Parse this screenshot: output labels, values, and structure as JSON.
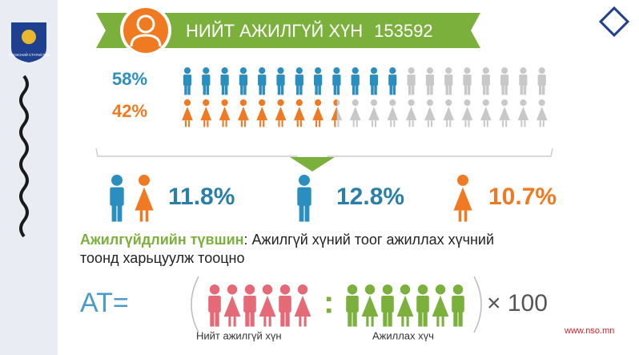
{
  "header": {
    "title": "НИЙТ АЖИЛГҮЙ ХҮН",
    "total": "153592"
  },
  "logo_text": "ҮНДЭСНИЙ СТАТИСТИК",
  "gender_split": [
    {
      "value": 58,
      "label": "58%"
    },
    {
      "value": 42,
      "label": "42%"
    }
  ],
  "rates": {
    "total": "11.8%",
    "male": "12.8%",
    "female": "10.7%"
  },
  "definition": {
    "term": "Ажилгүйдлийн түвшин",
    "separator": ":",
    "text_line1": " Ажилгүй хүний тоог ажиллах хүчний",
    "text_line2": "тоонд харьцуулж тооцно"
  },
  "formula": {
    "left": "AT=",
    "divider": ":",
    "multiplier": "× 100",
    "numerator_label": "Нийт ажилгүй хүн",
    "denominator_label": "Ажиллах хүч"
  },
  "footer": "www.nso.mn"
}
